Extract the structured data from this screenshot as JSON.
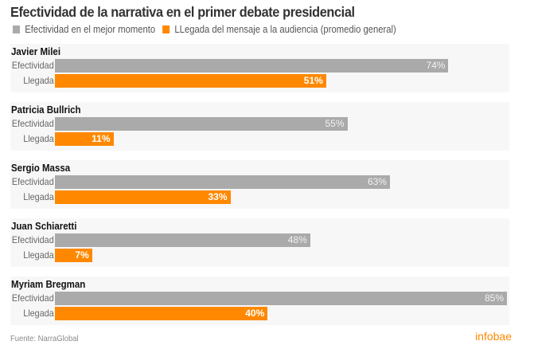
{
  "header": {
    "title": "Efectividad de la narrativa en el primer debate presidencial"
  },
  "chart_data": {
    "type": "bar",
    "orientation": "horizontal",
    "title": "Efectividad de la narrativa en el primer debate presidencial",
    "legend": [
      {
        "name": "Efectividad en el mejor momento",
        "color": "#aaaaaa"
      },
      {
        "name": "LLegada del mensaje a la audiencia (promedio general)",
        "color": "#ff8800"
      }
    ],
    "legend_position": "top-left",
    "row_labels": {
      "effectiveness": "Efectividad",
      "reach": "Llegada"
    },
    "categories": [
      "Javier Milei",
      "Patricia Bullrich",
      "Sergio Massa",
      "Juan Schiaretti",
      "Myriam Bregman"
    ],
    "series": [
      {
        "name": "Efectividad en el mejor momento",
        "key": "effectiveness",
        "values": [
          74,
          55,
          63,
          48,
          85
        ],
        "labels": [
          "74%",
          "55%",
          "63%",
          "48%",
          "85%"
        ]
      },
      {
        "name": "LLegada del mensaje a la audiencia (promedio general)",
        "key": "reach",
        "values": [
          51,
          11,
          33,
          7,
          40
        ],
        "labels": [
          "51%",
          "11%",
          "33%",
          "7%",
          "40%"
        ]
      }
    ],
    "value_unit": "%",
    "xlim": [
      0,
      85
    ],
    "grid": false
  },
  "footer": {
    "source": "Fuente: NarraGlobal",
    "brand": "infobae"
  }
}
